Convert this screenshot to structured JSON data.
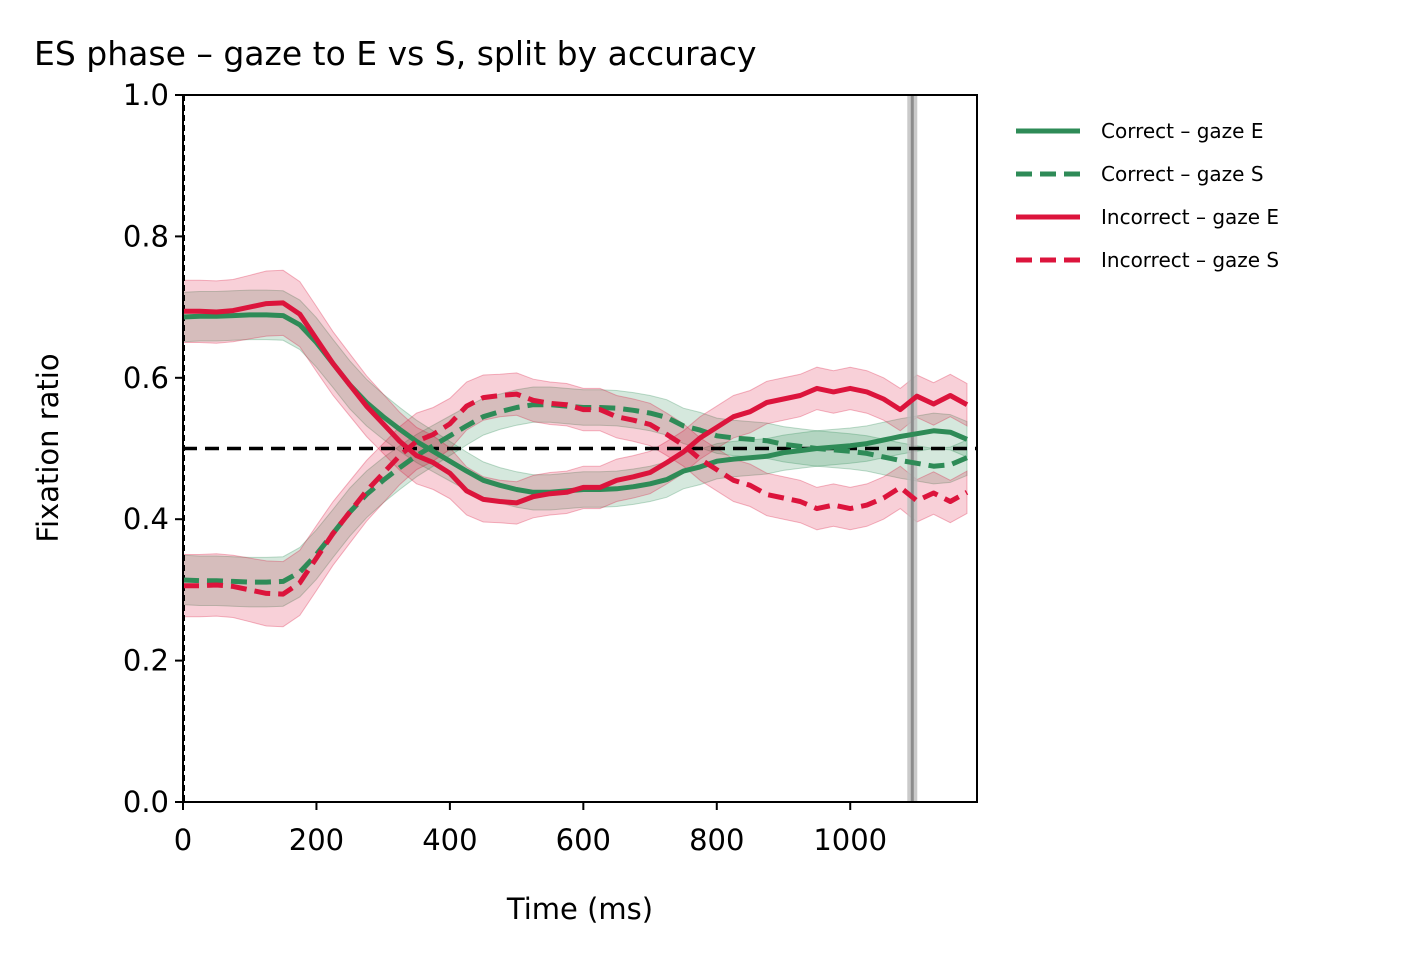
{
  "chart_data": {
    "type": "line",
    "title": "ES phase – gaze to E vs S, split by accuracy",
    "xlabel": "Time (ms)",
    "ylabel": "Fixation ratio",
    "xlim": [
      0,
      1190
    ],
    "ylim": [
      0,
      1.0
    ],
    "xticks": [
      0,
      200,
      400,
      600,
      800,
      1000
    ],
    "xtick_labels": [
      "0",
      "200",
      "400",
      "600",
      "800",
      "1000"
    ],
    "yticks": [
      0.0,
      0.2,
      0.4,
      0.6,
      0.8,
      1.0
    ],
    "ytick_labels": [
      "0.0",
      "0.2",
      "0.4",
      "0.6",
      "0.8",
      "1.0"
    ],
    "grid": false,
    "legend_position": "outside-right-top",
    "chance_line": 0.5,
    "onset_line_x": 0,
    "response_marker_x": 1093,
    "x": [
      0,
      25,
      50,
      75,
      100,
      125,
      150,
      175,
      200,
      225,
      250,
      275,
      300,
      325,
      350,
      375,
      400,
      425,
      450,
      475,
      500,
      525,
      550,
      575,
      600,
      625,
      650,
      675,
      700,
      725,
      750,
      775,
      800,
      825,
      850,
      875,
      900,
      925,
      950,
      975,
      1000,
      1025,
      1050,
      1075,
      1100,
      1125,
      1150,
      1175
    ],
    "series": [
      {
        "name": "Correct – gaze E",
        "color": "#2e8b57",
        "dash": "solid",
        "values": [
          0.686,
          0.687,
          0.687,
          0.688,
          0.689,
          0.689,
          0.688,
          0.675,
          0.65,
          0.62,
          0.59,
          0.565,
          0.545,
          0.527,
          0.51,
          0.496,
          0.482,
          0.468,
          0.455,
          0.448,
          0.442,
          0.438,
          0.438,
          0.44,
          0.442,
          0.442,
          0.443,
          0.446,
          0.45,
          0.456,
          0.468,
          0.474,
          0.482,
          0.485,
          0.487,
          0.489,
          0.494,
          0.497,
          0.5,
          0.502,
          0.504,
          0.507,
          0.512,
          0.517,
          0.521,
          0.525,
          0.523,
          0.513
        ],
        "band": [
          0.035,
          0.035,
          0.035,
          0.035,
          0.035,
          0.035,
          0.035,
          0.035,
          0.035,
          0.034,
          0.034,
          0.033,
          0.032,
          0.031,
          0.03,
          0.029,
          0.028,
          0.027,
          0.026,
          0.025,
          0.025,
          0.025,
          0.025,
          0.025,
          0.025,
          0.025,
          0.025,
          0.025,
          0.025,
          0.025,
          0.025,
          0.025,
          0.025,
          0.025,
          0.025,
          0.025,
          0.025,
          0.025,
          0.025,
          0.025,
          0.025,
          0.025,
          0.025,
          0.025,
          0.025,
          0.025,
          0.025,
          0.025
        ]
      },
      {
        "name": "Correct – gaze S",
        "color": "#2e8b57",
        "dash": "dashed",
        "values": [
          0.314,
          0.313,
          0.313,
          0.312,
          0.311,
          0.311,
          0.312,
          0.325,
          0.35,
          0.38,
          0.41,
          0.435,
          0.455,
          0.473,
          0.49,
          0.504,
          0.518,
          0.532,
          0.545,
          0.552,
          0.558,
          0.562,
          0.562,
          0.56,
          0.558,
          0.558,
          0.557,
          0.554,
          0.55,
          0.544,
          0.532,
          0.526,
          0.518,
          0.515,
          0.513,
          0.511,
          0.506,
          0.503,
          0.5,
          0.498,
          0.496,
          0.493,
          0.488,
          0.483,
          0.479,
          0.475,
          0.477,
          0.487
        ],
        "band": [
          0.035,
          0.035,
          0.035,
          0.035,
          0.035,
          0.035,
          0.035,
          0.035,
          0.035,
          0.034,
          0.034,
          0.033,
          0.032,
          0.031,
          0.03,
          0.029,
          0.028,
          0.027,
          0.026,
          0.025,
          0.025,
          0.025,
          0.025,
          0.025,
          0.025,
          0.025,
          0.025,
          0.025,
          0.025,
          0.025,
          0.025,
          0.025,
          0.025,
          0.025,
          0.025,
          0.025,
          0.025,
          0.025,
          0.025,
          0.025,
          0.025,
          0.025,
          0.025,
          0.025,
          0.025,
          0.025,
          0.025,
          0.025
        ]
      },
      {
        "name": "Incorrect – gaze E",
        "color": "#dc143c",
        "dash": "solid",
        "values": [
          0.694,
          0.694,
          0.693,
          0.695,
          0.7,
          0.705,
          0.706,
          0.69,
          0.655,
          0.62,
          0.59,
          0.56,
          0.535,
          0.51,
          0.49,
          0.48,
          0.465,
          0.44,
          0.428,
          0.425,
          0.423,
          0.432,
          0.436,
          0.438,
          0.445,
          0.445,
          0.455,
          0.46,
          0.466,
          0.48,
          0.495,
          0.515,
          0.53,
          0.545,
          0.552,
          0.565,
          0.57,
          0.575,
          0.585,
          0.58,
          0.585,
          0.58,
          0.57,
          0.555,
          0.574,
          0.563,
          0.575,
          0.562
        ],
        "band": [
          0.044,
          0.044,
          0.044,
          0.044,
          0.045,
          0.046,
          0.046,
          0.046,
          0.046,
          0.045,
          0.044,
          0.043,
          0.042,
          0.041,
          0.04,
          0.038,
          0.036,
          0.034,
          0.032,
          0.03,
          0.03,
          0.03,
          0.03,
          0.03,
          0.03,
          0.03,
          0.03,
          0.03,
          0.03,
          0.03,
          0.03,
          0.03,
          0.03,
          0.03,
          0.03,
          0.03,
          0.03,
          0.03,
          0.03,
          0.03,
          0.03,
          0.03,
          0.03,
          0.03,
          0.03,
          0.03,
          0.03,
          0.03
        ]
      },
      {
        "name": "Incorrect – gaze S",
        "color": "#dc143c",
        "dash": "dashed",
        "values": [
          0.306,
          0.306,
          0.307,
          0.305,
          0.3,
          0.295,
          0.294,
          0.31,
          0.345,
          0.38,
          0.41,
          0.44,
          0.465,
          0.49,
          0.51,
          0.52,
          0.535,
          0.56,
          0.572,
          0.575,
          0.577,
          0.568,
          0.564,
          0.562,
          0.555,
          0.555,
          0.545,
          0.54,
          0.534,
          0.52,
          0.505,
          0.485,
          0.47,
          0.455,
          0.448,
          0.435,
          0.43,
          0.425,
          0.415,
          0.42,
          0.415,
          0.42,
          0.43,
          0.445,
          0.426,
          0.437,
          0.425,
          0.438
        ],
        "band": [
          0.044,
          0.044,
          0.044,
          0.044,
          0.045,
          0.046,
          0.046,
          0.046,
          0.046,
          0.045,
          0.044,
          0.043,
          0.042,
          0.041,
          0.04,
          0.038,
          0.036,
          0.034,
          0.032,
          0.03,
          0.03,
          0.03,
          0.03,
          0.03,
          0.03,
          0.03,
          0.03,
          0.03,
          0.03,
          0.03,
          0.03,
          0.03,
          0.03,
          0.03,
          0.03,
          0.03,
          0.03,
          0.03,
          0.03,
          0.03,
          0.03,
          0.03,
          0.03,
          0.03,
          0.03,
          0.03,
          0.03,
          0.03
        ]
      }
    ]
  }
}
